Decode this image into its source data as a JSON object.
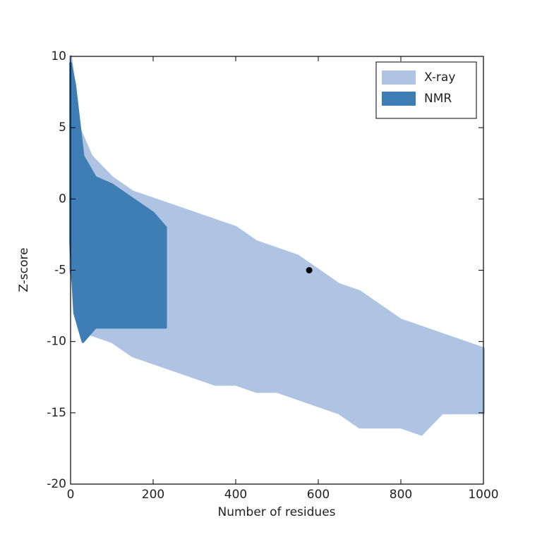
{
  "chart_data": {
    "type": "scatter",
    "xlabel": "Number of residues",
    "ylabel": "Z-score",
    "xlim": [
      0,
      1000
    ],
    "ylim": [
      -20,
      10
    ],
    "xticks": [
      0,
      200,
      400,
      600,
      800,
      1000
    ],
    "yticks": [
      -20,
      -15,
      -10,
      -5,
      0,
      5,
      10
    ],
    "legend": "upper right",
    "series": [
      {
        "name": "X-ray",
        "color": "#aec4e2",
        "x": [
          0,
          20,
          50,
          100,
          150,
          200,
          250,
          300,
          350,
          400,
          450,
          500,
          550,
          600,
          650,
          700,
          750,
          800,
          850,
          900,
          950,
          1000
        ],
        "high": [
          10,
          5,
          3,
          1.5,
          0.5,
          0,
          -0.5,
          -1,
          -1.5,
          -2,
          -3,
          -3.5,
          -4,
          -5,
          -6,
          -6.5,
          -7.5,
          -8.5,
          -9,
          -9.5,
          -10,
          -10.5
        ],
        "low": [
          -5,
          -8,
          -9.5,
          -10,
          -11,
          -11.5,
          -12,
          -12.5,
          -13,
          -13,
          -13.5,
          -13.5,
          -14,
          -14.5,
          -15,
          -16,
          -16,
          -16,
          -16.5,
          -15,
          -15,
          -15
        ]
      },
      {
        "name": "NMR",
        "color": "#3f7db5",
        "x": [
          0,
          10,
          30,
          60,
          100,
          150,
          200,
          230
        ],
        "high": [
          9.5,
          8,
          3,
          1.5,
          1,
          0,
          -1,
          -2
        ],
        "low": [
          -3,
          -8,
          -10,
          -9,
          -9,
          -9,
          -9,
          -9
        ]
      },
      {
        "color": "#000000",
        "x": [
          578
        ],
        "values": [
          -5
        ]
      }
    ]
  }
}
